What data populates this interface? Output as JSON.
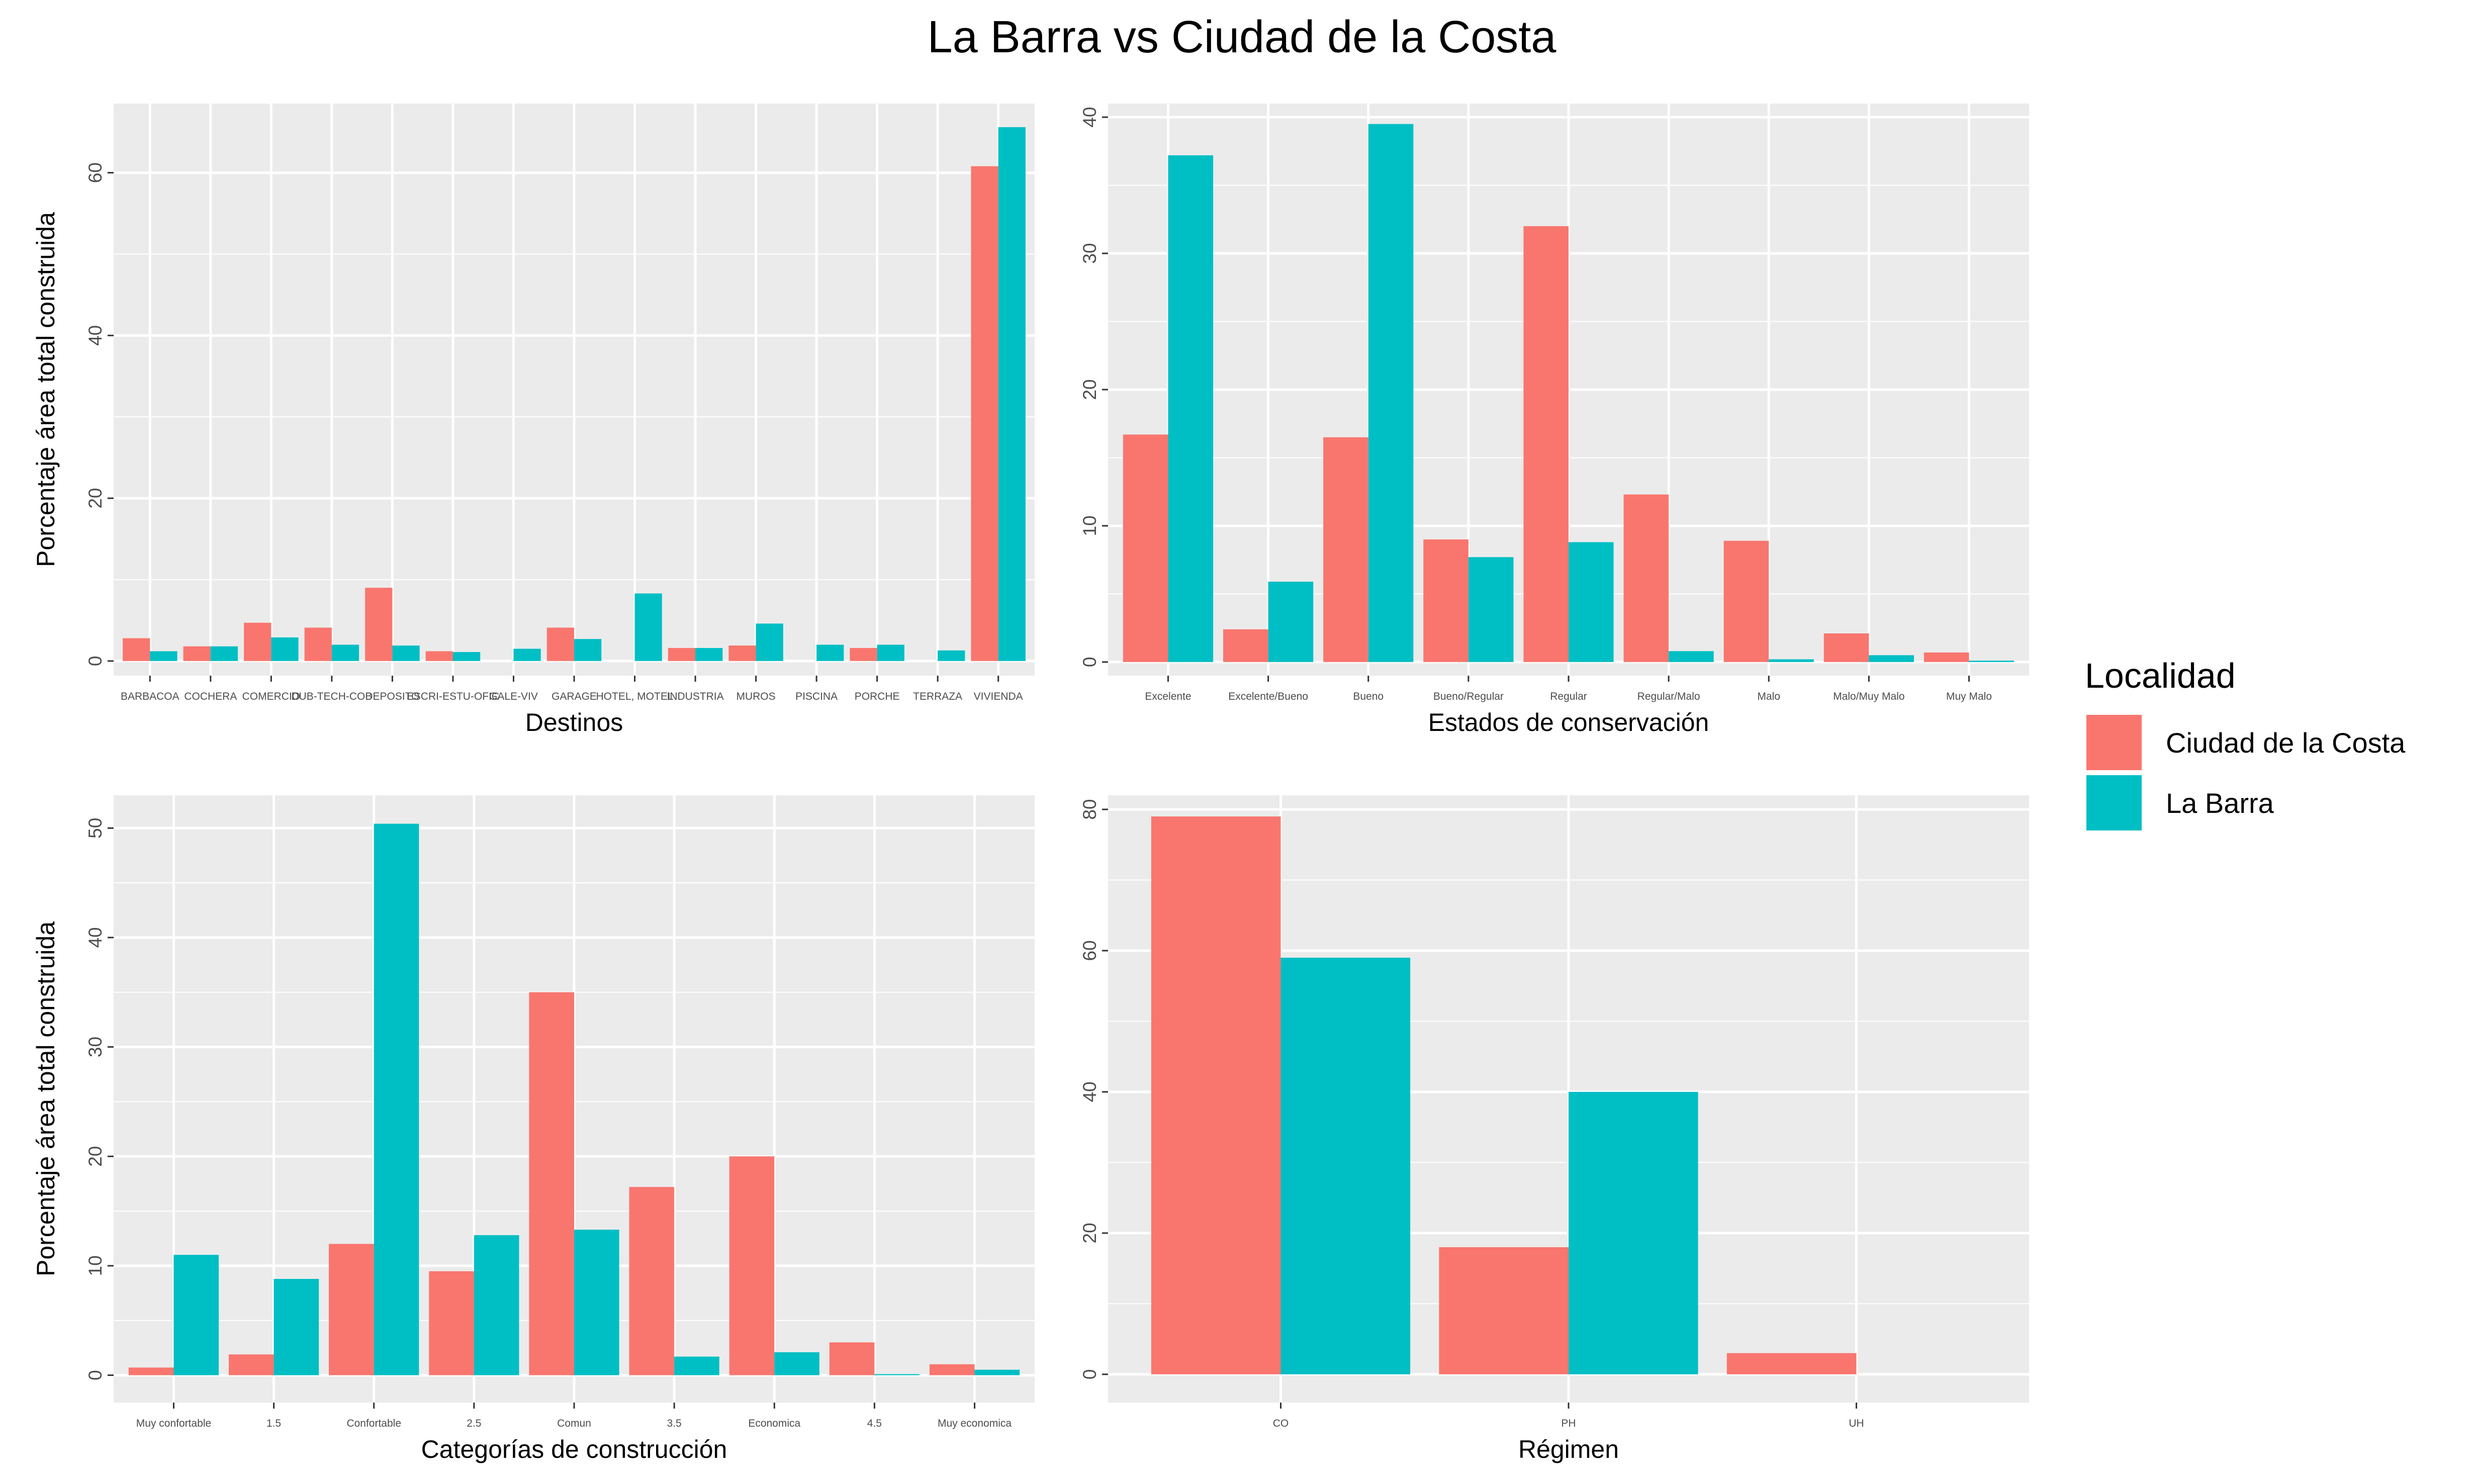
{
  "title": "La Barra vs Ciudad de la Costa",
  "legend": {
    "title": "Localidad",
    "items": [
      {
        "label": "Ciudad de la Costa",
        "color": "#F8766D"
      },
      {
        "label": "La Barra",
        "color": "#00BFC4"
      }
    ]
  },
  "chart_data": [
    {
      "type": "bar",
      "xlabel": "Destinos",
      "ylabel": "Porcentaje área total construida",
      "ylim": [
        -1.8,
        68.5
      ],
      "yticks": [
        0,
        20,
        40,
        60
      ],
      "grid": true,
      "categories": [
        "BARBACOA",
        "COCHERA",
        "COMERCIO",
        "DUB-TECH-COB",
        "DEPOSITO",
        "ESCRI-ESTU-OFIC",
        "GALE-VIV",
        "GARAGE",
        "HOTEL, MOTEL",
        "INDUSTRIA",
        "MUROS",
        "PISCINA",
        "PORCHE",
        "TERRAZA",
        "VIVIENDA"
      ],
      "series": [
        {
          "name": "Ciudad de la Costa",
          "values": [
            2.8,
            1.8,
            4.7,
            4.1,
            9.0,
            1.2,
            null,
            4.1,
            null,
            1.6,
            1.9,
            null,
            1.6,
            null,
            60.8
          ]
        },
        {
          "name": "La Barra",
          "values": [
            1.2,
            1.8,
            2.9,
            2.0,
            1.9,
            1.1,
            1.5,
            2.7,
            8.3,
            1.6,
            4.6,
            2.0,
            2.0,
            1.3,
            65.6
          ]
        }
      ]
    },
    {
      "type": "bar",
      "xlabel": "Estados de conservación",
      "ylabel": "",
      "ylim": [
        -1.0,
        41.0
      ],
      "yticks": [
        0,
        10,
        20,
        30,
        40
      ],
      "grid": true,
      "categories": [
        "Excelente",
        "Excelente/Bueno",
        "Bueno",
        "Bueno/Regular",
        "Regular",
        "Regular/Malo",
        "Malo",
        "Malo/Muy Malo",
        "Muy Malo"
      ],
      "series": [
        {
          "name": "Ciudad de la Costa",
          "values": [
            16.7,
            2.4,
            16.5,
            9.0,
            32.0,
            12.3,
            8.9,
            2.1,
            0.7
          ]
        },
        {
          "name": "La Barra",
          "values": [
            37.2,
            5.9,
            39.5,
            7.7,
            8.8,
            0.8,
            0.2,
            0.5,
            0.1
          ]
        }
      ]
    },
    {
      "type": "bar",
      "xlabel": "Categorías de construcción",
      "ylabel": "Porcentaje área total construida",
      "ylim": [
        -2.5,
        53.0
      ],
      "yticks": [
        0,
        10,
        20,
        30,
        40,
        50
      ],
      "grid": true,
      "categories": [
        "Muy confortable",
        "1.5",
        "Confortable",
        "2.5",
        "Comun",
        "3.5",
        "Economica",
        "4.5",
        "Muy economica"
      ],
      "series": [
        {
          "name": "Ciudad de la Costa",
          "values": [
            0.7,
            1.9,
            12.0,
            9.5,
            35.0,
            17.2,
            20.0,
            3.0,
            1.0
          ]
        },
        {
          "name": "La Barra",
          "values": [
            11.0,
            8.8,
            50.4,
            12.8,
            13.3,
            1.7,
            2.1,
            0.1,
            0.5
          ]
        }
      ]
    },
    {
      "type": "bar",
      "xlabel": "Régimen",
      "ylabel": "",
      "ylim": [
        -4.0,
        82.0
      ],
      "yticks": [
        0,
        20,
        40,
        60,
        80
      ],
      "grid": true,
      "categories": [
        "CO",
        "PH",
        "UH"
      ],
      "series": [
        {
          "name": "Ciudad de la Costa",
          "values": [
            79.0,
            18.0,
            3.0
          ]
        },
        {
          "name": "La Barra",
          "values": [
            59.0,
            40.0,
            null
          ]
        }
      ]
    }
  ]
}
